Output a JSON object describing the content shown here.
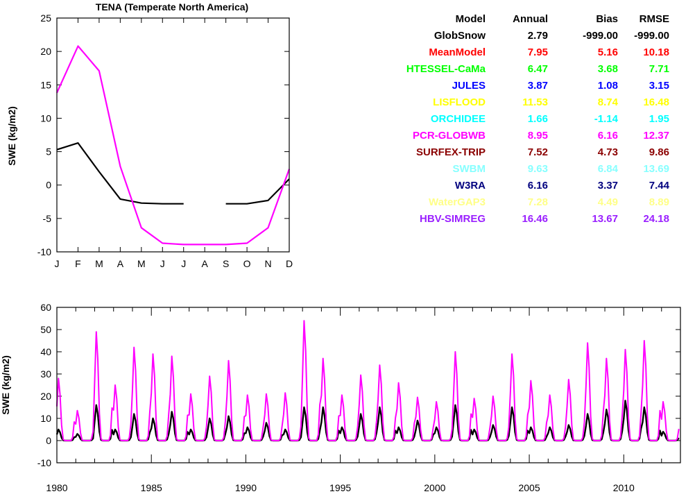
{
  "charts": {
    "climatology": {
      "title": "TENA (Temperate North America)",
      "ylabel": "SWE (kg/m2)"
    },
    "timeseries": {
      "ylabel": "SWE (kg/m2)"
    }
  },
  "stats_table": {
    "headers": [
      "Model",
      "Annual",
      "Bias",
      "RMSE"
    ],
    "rows": [
      {
        "model": "GlobSnow",
        "annual": "2.79",
        "bias": "-999.00",
        "rmse": "-999.00",
        "color": "#000000"
      },
      {
        "model": "MeanModel",
        "annual": "7.95",
        "bias": "5.16",
        "rmse": "10.18",
        "color": "#ff0000"
      },
      {
        "model": "HTESSEL-CaMa",
        "annual": "6.47",
        "bias": "3.68",
        "rmse": "7.71",
        "color": "#00ff00"
      },
      {
        "model": "JULES",
        "annual": "3.87",
        "bias": "1.08",
        "rmse": "3.15",
        "color": "#0000ff"
      },
      {
        "model": "LISFLOOD",
        "annual": "11.53",
        "bias": "8.74",
        "rmse": "16.48",
        "color": "#ffff00"
      },
      {
        "model": "ORCHIDEE",
        "annual": "1.66",
        "bias": "-1.14",
        "rmse": "1.95",
        "color": "#00ffff"
      },
      {
        "model": "PCR-GLOBWB",
        "annual": "8.95",
        "bias": "6.16",
        "rmse": "12.37",
        "color": "#ff00ff"
      },
      {
        "model": "SURFEX-TRIP",
        "annual": "7.52",
        "bias": "4.73",
        "rmse": "9.86",
        "color": "#8b0000"
      },
      {
        "model": "SWBM",
        "annual": "9.63",
        "bias": "6.84",
        "rmse": "13.69",
        "color": "#87ffff"
      },
      {
        "model": "W3RA",
        "annual": "6.16",
        "bias": "3.37",
        "rmse": "7.44",
        "color": "#00007f"
      },
      {
        "model": "WaterGAP3",
        "annual": "7.28",
        "bias": "4.49",
        "rmse": "8.89",
        "color": "#ffff87"
      },
      {
        "model": "HBV-SIMREG",
        "annual": "16.46",
        "bias": "13.67",
        "rmse": "24.18",
        "color": "#9a20ff"
      }
    ]
  },
  "chart_data": [
    {
      "type": "line",
      "title": "TENA (Temperate North America)",
      "xlabel": "",
      "ylabel": "SWE (kg/m2)",
      "categories": [
        "J",
        "F",
        "M",
        "A",
        "M",
        "J",
        "J",
        "A",
        "S",
        "O",
        "N",
        "D"
      ],
      "ylim": [
        -10,
        25
      ],
      "yticks": [
        -10,
        -5,
        0,
        5,
        10,
        15,
        20,
        25
      ],
      "series": [
        {
          "color": "#000000",
          "values": [
            5.3,
            6.3,
            2.0,
            -2.1,
            -2.7,
            -2.8,
            -2.8,
            null,
            -2.8,
            -2.8,
            -2.3,
            0.9
          ]
        },
        {
          "color": "#ff00ff",
          "values": [
            13.8,
            20.8,
            17.1,
            2.8,
            -6.4,
            -8.7,
            -8.9,
            -8.9,
            -8.9,
            -8.7,
            -6.4,
            2.4
          ]
        }
      ]
    },
    {
      "type": "line",
      "xlabel": "",
      "ylabel": "SWE (kg/m2)",
      "x_range": [
        1980,
        2013
      ],
      "ylim": [
        -10,
        60
      ],
      "yticks": [
        -10,
        0,
        10,
        20,
        30,
        40,
        50,
        60
      ],
      "xticks": [
        1980,
        1985,
        1990,
        1995,
        2000,
        2005,
        2010
      ],
      "series": [
        {
          "color": "#000000",
          "peak_years": [
            1980,
            1981,
            1982,
            1983,
            1984,
            1985,
            1986,
            1987,
            1988,
            1989,
            1990,
            1991,
            1992,
            1993,
            1994,
            1995,
            1996,
            1997,
            1998,
            1999,
            2000,
            2001,
            2002,
            2003,
            2004,
            2005,
            2006,
            2007,
            2008,
            2009,
            2010,
            2011,
            2012
          ],
          "annual_peaks": [
            5,
            3,
            16,
            5,
            12,
            10,
            13,
            5,
            10,
            11,
            6,
            8,
            5,
            15,
            15,
            6,
            12,
            15,
            6,
            9,
            6,
            16,
            5,
            7,
            15,
            6,
            6,
            7,
            12,
            14,
            18,
            15,
            4
          ]
        },
        {
          "color": "#ff00ff",
          "peak_years": [
            1980,
            1981,
            1982,
            1983,
            1984,
            1985,
            1986,
            1987,
            1988,
            1989,
            1990,
            1991,
            1992,
            1993,
            1994,
            1995,
            1996,
            1997,
            1998,
            1999,
            2000,
            2001,
            2002,
            2003,
            2004,
            2005,
            2006,
            2007,
            2008,
            2009,
            2010,
            2011,
            2012
          ],
          "annual_peaks": [
            28,
            13.5,
            49,
            25,
            42,
            39,
            38,
            21,
            29,
            36,
            20.5,
            21,
            21.5,
            54,
            37,
            20.5,
            29.5,
            34,
            26,
            19.5,
            17.5,
            40,
            19,
            20,
            39,
            27,
            20.5,
            27.5,
            44,
            37,
            41,
            45,
            17.5
          ]
        }
      ]
    }
  ]
}
